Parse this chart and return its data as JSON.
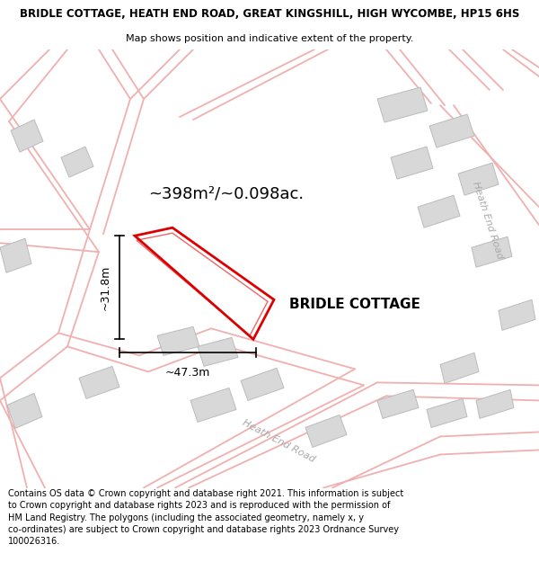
{
  "title_line1": "BRIDLE COTTAGE, HEATH END ROAD, GREAT KINGSHILL, HIGH WYCOMBE, HP15 6HS",
  "title_line2": "Map shows position and indicative extent of the property.",
  "property_label": "BRIDLE COTTAGE",
  "area_label": "~398m²/~0.098ac.",
  "dim_width": "~47.3m",
  "dim_height": "~31.8m",
  "road_label_1": "Heath End Road",
  "road_label_2": "Heath End Road",
  "footer_text": "Contains OS data © Crown copyright and database right 2021. This information is subject\nto Crown copyright and database rights 2023 and is reproduced with the permission of\nHM Land Registry. The polygons (including the associated geometry, namely x, y\nco-ordinates) are subject to Crown copyright and database rights 2023 Ordnance Survey\n100026316.",
  "bg_color": "#ffffff",
  "map_bg": "#ffffff",
  "road_line_color": "#f0b0b0",
  "building_fill": "#d8d8d8",
  "building_edge": "#bbbbbb",
  "property_outline_color": "#dd0000",
  "measurement_line_color": "#000000",
  "title_fontsize": 8.5,
  "subtitle_fontsize": 8.0,
  "area_fontsize": 13,
  "dim_fontsize": 9,
  "footer_fontsize": 7.0,
  "prop_label_fontsize": 11
}
